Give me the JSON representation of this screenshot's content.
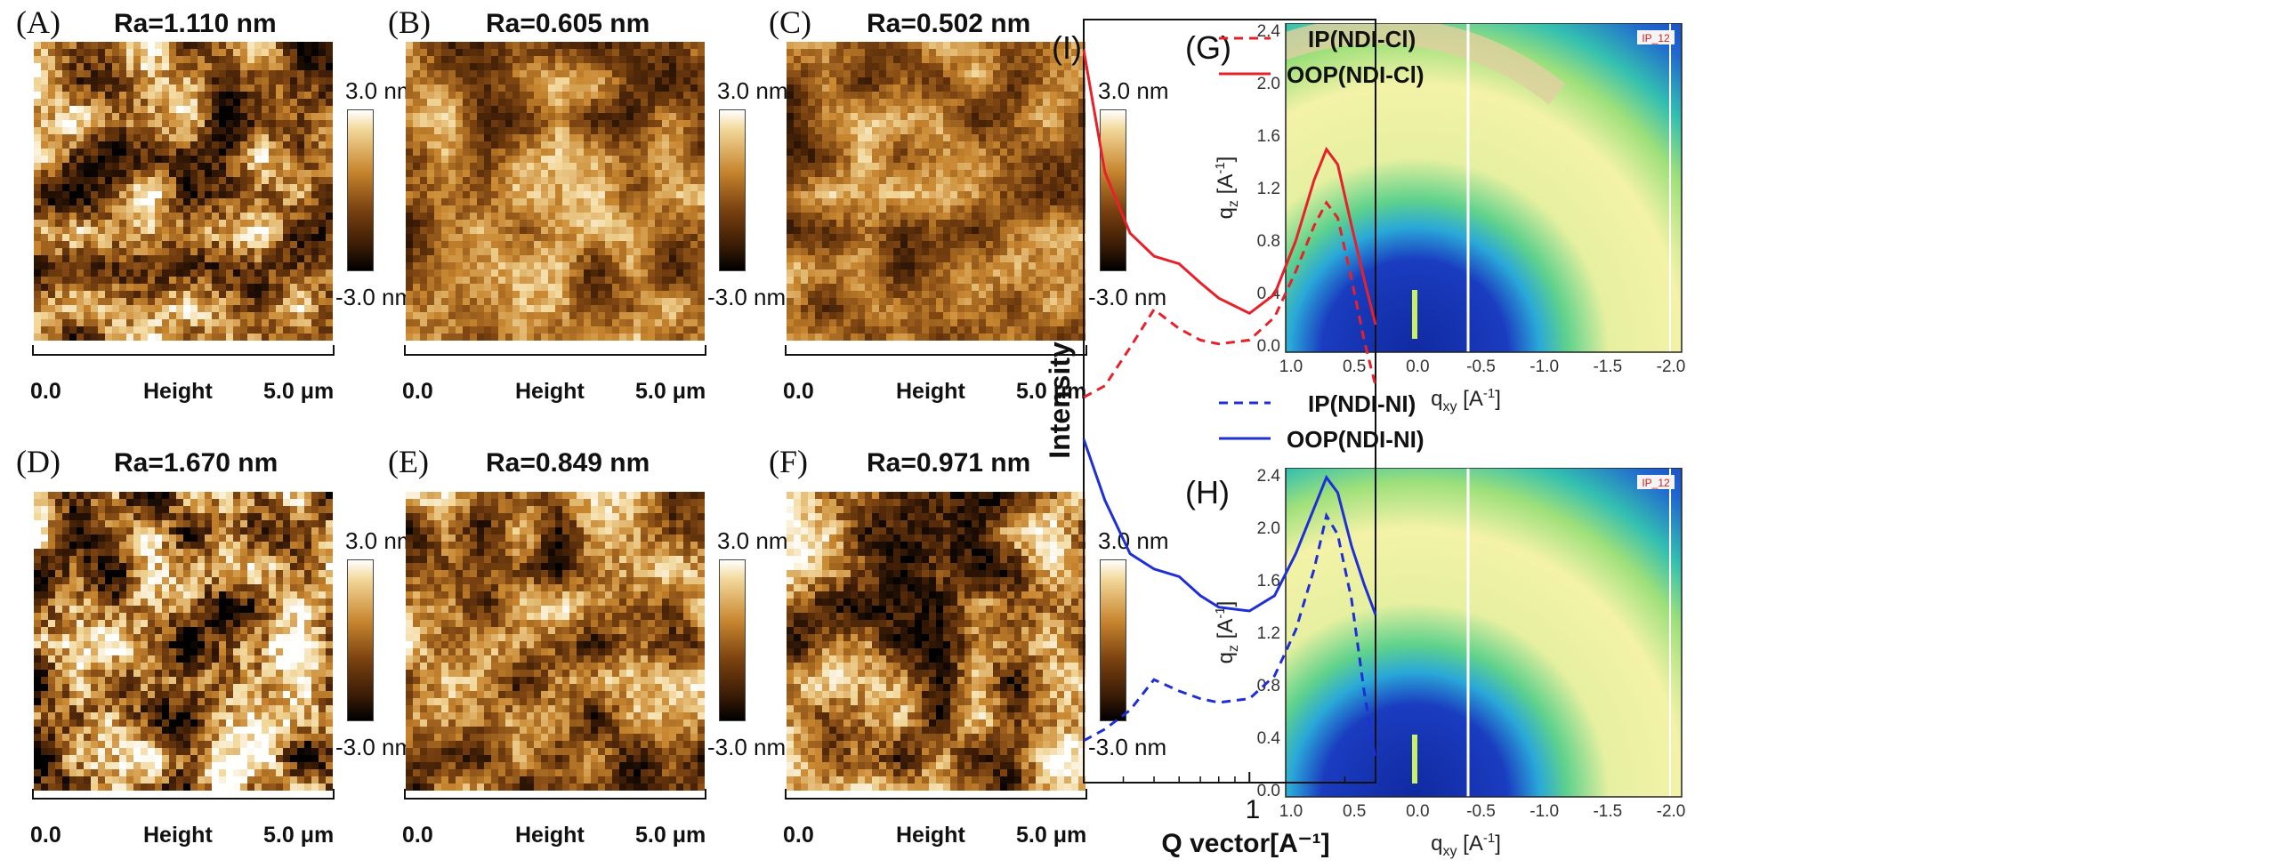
{
  "afm": {
    "panels": [
      {
        "label": "(A)",
        "ra": "Ra=1.110 nm"
      },
      {
        "label": "(B)",
        "ra": "Ra=0.605 nm"
      },
      {
        "label": "(C)",
        "ra": "Ra=0.502 nm"
      },
      {
        "label": "(D)",
        "ra": "Ra=1.670 nm"
      },
      {
        "label": "(E)",
        "ra": "Ra=0.849 nm"
      },
      {
        "label": "(F)",
        "ra": "Ra=0.971 nm"
      }
    ],
    "colorbar": {
      "max": "3.0 nm",
      "min": "-3.0 nm"
    },
    "scale": {
      "start": "0.0",
      "channel": "Height",
      "end": "5.0 μm"
    }
  },
  "giwaxs": {
    "panels": [
      {
        "label": "(G)"
      },
      {
        "label": "(H)"
      }
    ],
    "ylabel_main": "q",
    "ylabel_sub": "z",
    "ylabel_unit": " [A",
    "ylabel_exp": "-1",
    "ylabel_close": "]",
    "xlabel_main": "q",
    "xlabel_sub": "xy",
    "xlabel_unit": " [A",
    "xlabel_exp": "-1",
    "xlabel_close": "]",
    "yticks": [
      "2.4",
      "2.0",
      "1.6",
      "1.2",
      "0.8",
      "0.4",
      "0.0"
    ],
    "xticks": [
      "1.0",
      "0.5",
      "0.0",
      "-0.5",
      "-1.0",
      "-1.5",
      "-2.0"
    ],
    "tag": "IP_12"
  },
  "chart_data": {
    "type": "line",
    "panel_label": "(I)",
    "xlabel": "Q vector[A⁻¹]",
    "ylabel": "Intensity",
    "x_scale": "log",
    "xticks": [
      "1"
    ],
    "legend_top": [
      "IP(NDI-Cl)",
      "OOP(NDI-Cl)"
    ],
    "legend_bottom": [
      "IP(NDI-NI)",
      "OOP(NDI-NI)"
    ],
    "colors": {
      "red": "#e8202a",
      "blue": "#1f2fd6"
    },
    "x": [
      0.3,
      0.35,
      0.42,
      0.5,
      0.6,
      0.7,
      0.8,
      1.0,
      1.2,
      1.4,
      1.6,
      1.75,
      1.9,
      2.1,
      2.3,
      2.5
    ],
    "series": [
      {
        "name": "OOP(NDI-Cl)",
        "style": "solid",
        "color": "#e8202a",
        "values": [
          9.6,
          8.0,
          7.2,
          6.9,
          6.8,
          6.55,
          6.35,
          6.15,
          6.4,
          7.1,
          7.9,
          8.3,
          8.1,
          7.3,
          6.6,
          6.0
        ]
      },
      {
        "name": "IP(NDI-Cl)",
        "style": "dash",
        "color": "#e8202a",
        "values": [
          5.05,
          5.2,
          5.7,
          6.2,
          5.95,
          5.8,
          5.75,
          5.8,
          6.1,
          6.7,
          7.3,
          7.6,
          7.4,
          6.6,
          5.8,
          5.2
        ]
      },
      {
        "name": "OOP(NDI-NI)",
        "style": "solid",
        "color": "#1f2fd6",
        "values": [
          4.5,
          3.7,
          3.0,
          2.8,
          2.7,
          2.45,
          2.3,
          2.25,
          2.45,
          3.0,
          3.6,
          4.0,
          3.8,
          3.1,
          2.6,
          2.2
        ]
      },
      {
        "name": "IP(NDI-NI)",
        "style": "dash",
        "color": "#1f2fd6",
        "values": [
          0.55,
          0.7,
          0.95,
          1.35,
          1.2,
          1.1,
          1.05,
          1.1,
          1.4,
          2.0,
          2.8,
          3.5,
          3.25,
          2.4,
          1.2,
          0.3
        ]
      }
    ]
  }
}
